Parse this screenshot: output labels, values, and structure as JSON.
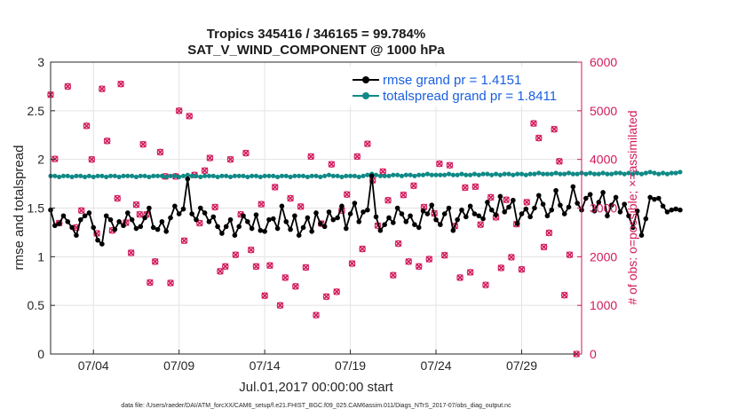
{
  "chart_data": {
    "type": "line",
    "title": "Tropics 345416 / 346165 = 99.784%",
    "subtitle": "SAT_V_WIND_COMPONENT @ 1000 hPa",
    "xlabel": "Jul.01,2017 00:00:00 start",
    "ylabel": "rmse and totalspread",
    "ylabel_right": "# of obs: o=possible; ×=assimilated",
    "xlim": [
      1.5,
      32.5
    ],
    "ylim": [
      0,
      3
    ],
    "ylim_right": [
      0,
      6000
    ],
    "x_ticks": [
      4,
      9,
      14,
      19,
      24,
      29
    ],
    "x_tick_labels": [
      "07/04",
      "07/09",
      "07/14",
      "07/19",
      "07/24",
      "07/29"
    ],
    "y_ticks": [
      0,
      0.5,
      1,
      1.5,
      2,
      2.5,
      3
    ],
    "y_tick_labels": [
      "0",
      "0.5",
      "1",
      "1.5",
      "2",
      "2.5",
      "3"
    ],
    "y_right_ticks": [
      0,
      1000,
      2000,
      3000,
      4000,
      5000,
      6000
    ],
    "y_right_tick_labels": [
      "0",
      "1000",
      "2000",
      "3000",
      "4000",
      "5000",
      "6000"
    ],
    "legend_position": "top-right",
    "series": [
      {
        "name": "rmse grand pr = 1.4151",
        "color": "#000000",
        "axis": "left",
        "x_start": 1.5,
        "x_step": 0.25,
        "values": [
          1.48,
          1.32,
          1.34,
          1.42,
          1.36,
          1.3,
          1.22,
          1.38,
          1.42,
          1.45,
          1.3,
          1.17,
          1.13,
          1.42,
          1.38,
          1.28,
          1.36,
          1.32,
          1.45,
          1.38,
          1.29,
          1.31,
          1.4,
          1.5,
          1.3,
          1.28,
          1.36,
          1.26,
          1.4,
          1.52,
          1.44,
          1.49,
          1.8,
          1.44,
          1.38,
          1.5,
          1.45,
          1.36,
          1.41,
          1.31,
          1.24,
          1.31,
          1.38,
          1.22,
          1.31,
          1.42,
          1.36,
          1.29,
          1.43,
          1.27,
          1.26,
          1.38,
          1.39,
          1.29,
          1.52,
          1.36,
          1.28,
          1.42,
          1.22,
          1.3,
          1.4,
          1.26,
          1.45,
          1.34,
          1.31,
          1.46,
          1.38,
          1.4,
          1.52,
          1.29,
          1.44,
          1.55,
          1.36,
          1.46,
          1.48,
          1.83,
          1.41,
          1.27,
          1.33,
          1.4,
          1.35,
          1.5,
          1.44,
          1.36,
          1.42,
          1.33,
          1.3,
          1.47,
          1.44,
          1.53,
          1.38,
          1.33,
          1.44,
          1.5,
          1.27,
          1.38,
          1.48,
          1.41,
          1.52,
          1.44,
          1.42,
          1.39,
          1.56,
          1.48,
          1.43,
          1.62,
          1.46,
          1.51,
          1.58,
          1.34,
          1.44,
          1.49,
          1.41,
          1.5,
          1.63,
          1.54,
          1.42,
          1.48,
          1.68,
          1.53,
          1.44,
          1.51,
          1.72,
          1.55,
          1.48,
          1.6,
          1.64,
          1.47,
          1.56,
          1.66,
          1.42,
          1.53,
          1.61,
          1.46,
          1.54,
          1.42,
          1.3,
          1.47,
          1.22,
          1.39,
          1.61,
          1.59,
          1.6,
          1.52,
          1.46,
          1.48,
          1.49,
          1.48
        ]
      },
      {
        "name": "totalspread grand pr = 1.8411",
        "color": "#0f8a86",
        "axis": "left",
        "x_start": 1.5,
        "x_step": 0.25,
        "values": [
          1.83,
          1.83,
          1.82,
          1.83,
          1.83,
          1.82,
          1.83,
          1.83,
          1.82,
          1.83,
          1.82,
          1.83,
          1.83,
          1.82,
          1.83,
          1.83,
          1.82,
          1.83,
          1.83,
          1.83,
          1.82,
          1.83,
          1.83,
          1.82,
          1.83,
          1.83,
          1.83,
          1.82,
          1.83,
          1.83,
          1.82,
          1.83,
          1.84,
          1.83,
          1.83,
          1.82,
          1.83,
          1.83,
          1.83,
          1.82,
          1.83,
          1.83,
          1.82,
          1.83,
          1.83,
          1.83,
          1.82,
          1.83,
          1.83,
          1.82,
          1.83,
          1.83,
          1.83,
          1.82,
          1.83,
          1.83,
          1.82,
          1.83,
          1.83,
          1.83,
          1.82,
          1.83,
          1.83,
          1.82,
          1.83,
          1.84,
          1.83,
          1.83,
          1.82,
          1.83,
          1.83,
          1.83,
          1.82,
          1.83,
          1.84,
          1.85,
          1.84,
          1.83,
          1.83,
          1.83,
          1.84,
          1.84,
          1.83,
          1.84,
          1.84,
          1.83,
          1.84,
          1.84,
          1.85,
          1.84,
          1.84,
          1.84,
          1.84,
          1.85,
          1.84,
          1.84,
          1.85,
          1.84,
          1.84,
          1.85,
          1.84,
          1.85,
          1.85,
          1.84,
          1.85,
          1.84,
          1.85,
          1.85,
          1.84,
          1.85,
          1.85,
          1.84,
          1.85,
          1.85,
          1.86,
          1.85,
          1.85,
          1.85,
          1.86,
          1.85,
          1.85,
          1.86,
          1.85,
          1.85,
          1.86,
          1.85,
          1.86,
          1.85,
          1.85,
          1.86,
          1.85,
          1.85,
          1.86,
          1.86,
          1.85,
          1.86,
          1.85,
          1.86,
          1.85,
          1.86,
          1.87,
          1.86,
          1.85,
          1.86,
          1.85,
          1.86,
          1.86,
          1.87
        ]
      }
    ],
    "obs_series": {
      "name": "# of obs (possible / assimilated)",
      "color": "#d11a5c",
      "axis": "right",
      "points": [
        [
          1.5,
          5330
        ],
        [
          1.75,
          4010
        ],
        [
          2.0,
          2690
        ],
        [
          2.5,
          5500
        ],
        [
          3.0,
          2600
        ],
        [
          3.3,
          2950
        ],
        [
          3.6,
          4690
        ],
        [
          3.9,
          4000
        ],
        [
          4.2,
          2480
        ],
        [
          4.5,
          5450
        ],
        [
          4.8,
          4380
        ],
        [
          5.1,
          2540
        ],
        [
          5.4,
          3200
        ],
        [
          5.6,
          5550
        ],
        [
          5.9,
          2700
        ],
        [
          6.2,
          2080
        ],
        [
          6.5,
          3070
        ],
        [
          6.7,
          2870
        ],
        [
          6.9,
          4310
        ],
        [
          7.1,
          2870
        ],
        [
          7.3,
          1470
        ],
        [
          7.6,
          1900
        ],
        [
          7.9,
          4150
        ],
        [
          8.2,
          3650
        ],
        [
          8.5,
          1460
        ],
        [
          8.8,
          3650
        ],
        [
          9.0,
          5000
        ],
        [
          9.3,
          2330
        ],
        [
          9.6,
          4890
        ],
        [
          9.9,
          3680
        ],
        [
          10.2,
          2690
        ],
        [
          10.5,
          3770
        ],
        [
          10.8,
          4030
        ],
        [
          11.1,
          3020
        ],
        [
          11.4,
          1700
        ],
        [
          11.7,
          1800
        ],
        [
          12.0,
          4000
        ],
        [
          12.3,
          2040
        ],
        [
          12.6,
          2870
        ],
        [
          12.9,
          4130
        ],
        [
          13.2,
          2140
        ],
        [
          13.5,
          1800
        ],
        [
          13.8,
          3080
        ],
        [
          14.0,
          1200
        ],
        [
          14.3,
          1820
        ],
        [
          14.6,
          3430
        ],
        [
          14.9,
          1000
        ],
        [
          15.2,
          1570
        ],
        [
          15.5,
          3200
        ],
        [
          15.8,
          1390
        ],
        [
          16.1,
          3030
        ],
        [
          16.4,
          1780
        ],
        [
          16.7,
          4060
        ],
        [
          17.0,
          800
        ],
        [
          17.3,
          2680
        ],
        [
          17.6,
          1180
        ],
        [
          17.9,
          3900
        ],
        [
          18.2,
          1280
        ],
        [
          18.5,
          2950
        ],
        [
          18.8,
          3280
        ],
        [
          19.1,
          1860
        ],
        [
          19.4,
          4060
        ],
        [
          19.7,
          2160
        ],
        [
          20.0,
          4320
        ],
        [
          20.3,
          3570
        ],
        [
          20.6,
          2640
        ],
        [
          20.9,
          3750
        ],
        [
          21.2,
          3160
        ],
        [
          21.5,
          1620
        ],
        [
          21.8,
          2270
        ],
        [
          22.1,
          3270
        ],
        [
          22.4,
          1900
        ],
        [
          22.7,
          3460
        ],
        [
          23.0,
          1800
        ],
        [
          23.3,
          3020
        ],
        [
          23.6,
          1950
        ],
        [
          23.9,
          2890
        ],
        [
          24.2,
          3910
        ],
        [
          24.5,
          2030
        ],
        [
          24.8,
          3880
        ],
        [
          25.1,
          2630
        ],
        [
          25.4,
          1570
        ],
        [
          25.7,
          3420
        ],
        [
          26.0,
          1680
        ],
        [
          26.3,
          3440
        ],
        [
          26.6,
          2660
        ],
        [
          26.9,
          1420
        ],
        [
          27.2,
          3220
        ],
        [
          27.5,
          2810
        ],
        [
          27.8,
          1770
        ],
        [
          28.1,
          3170
        ],
        [
          28.4,
          1990
        ],
        [
          28.7,
          2670
        ],
        [
          29.0,
          1740
        ],
        [
          29.3,
          3120
        ],
        [
          29.7,
          4740
        ],
        [
          30.0,
          4440
        ],
        [
          30.3,
          2200
        ],
        [
          30.6,
          2490
        ],
        [
          30.9,
          4620
        ],
        [
          31.2,
          3960
        ],
        [
          31.5,
          1210
        ],
        [
          31.8,
          2040
        ],
        [
          32.2,
          0
        ]
      ]
    },
    "footer_note": "data file: /Users/raeder/DAI/ATM_forcXX/CAM6_setup/f.e21.FHIST_BGC.f09_025.CAM6assim.011/Diags_NTrS_2017-07/obs_diag_output.nc"
  }
}
